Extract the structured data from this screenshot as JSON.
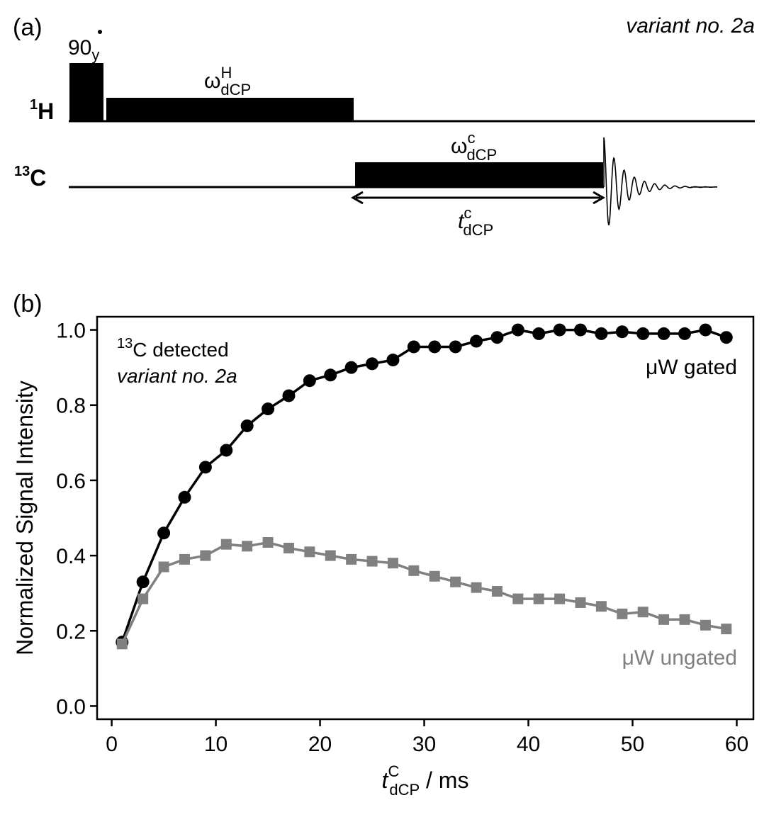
{
  "diagram": {
    "panel_label": "(a)",
    "variant": "variant no. 2a",
    "pulse_90": {
      "text": "90",
      "sub": "y"
    },
    "channel_h": {
      "sup": "1",
      "text": "H"
    },
    "channel_c": {
      "sup": "13",
      "text": "C"
    },
    "omega_h": {
      "text": "ω",
      "sup": "H",
      "sub": "dCP"
    },
    "omega_c": {
      "text": "ω",
      "sup": "c",
      "sub": "dCP"
    },
    "t_dcp": {
      "text": "t",
      "sup": "c",
      "sub": "dCP"
    }
  },
  "chart_data": {
    "type": "line",
    "panel_label": "(b)",
    "xlabel": {
      "text": "t",
      "sup": "C",
      "sub": "dCP",
      "unit": " / ms"
    },
    "ylabel": "Normalized Signal Intensity",
    "annotation": {
      "sup": "13",
      "text": "C detected",
      "variant": "variant no. 2a"
    },
    "x": [
      1,
      3,
      5,
      7,
      9,
      11,
      13,
      15,
      17,
      19,
      21,
      23,
      25,
      27,
      29,
      31,
      33,
      35,
      37,
      39,
      41,
      43,
      45,
      47,
      49,
      51,
      53,
      55,
      57,
      59
    ],
    "series": [
      {
        "name": "μW gated",
        "color": "#000000",
        "marker": "circle",
        "values": [
          0.17,
          0.33,
          0.46,
          0.555,
          0.635,
          0.68,
          0.745,
          0.79,
          0.825,
          0.865,
          0.88,
          0.9,
          0.91,
          0.92,
          0.955,
          0.955,
          0.955,
          0.97,
          0.98,
          1.0,
          0.99,
          1.0,
          1.0,
          0.99,
          0.995,
          0.99,
          0.99,
          0.99,
          1.0,
          0.98
        ]
      },
      {
        "name": "μW ungated",
        "color": "#808080",
        "marker": "square",
        "values": [
          0.165,
          0.285,
          0.37,
          0.39,
          0.4,
          0.43,
          0.425,
          0.435,
          0.42,
          0.41,
          0.4,
          0.39,
          0.385,
          0.38,
          0.36,
          0.345,
          0.33,
          0.315,
          0.305,
          0.285,
          0.285,
          0.285,
          0.275,
          0.265,
          0.245,
          0.25,
          0.23,
          0.23,
          0.215,
          0.205
        ]
      }
    ],
    "xlim": [
      -1.4,
      61.6
    ],
    "ylim": [
      -0.035,
      1.035
    ],
    "xticks": [
      0,
      10,
      20,
      30,
      40,
      50,
      60
    ],
    "yticks": [
      {
        "value": 0,
        "label": "0.0"
      },
      0.2,
      0.4,
      0.6,
      0.8,
      {
        "value": 1,
        "label": "1.0"
      }
    ]
  }
}
